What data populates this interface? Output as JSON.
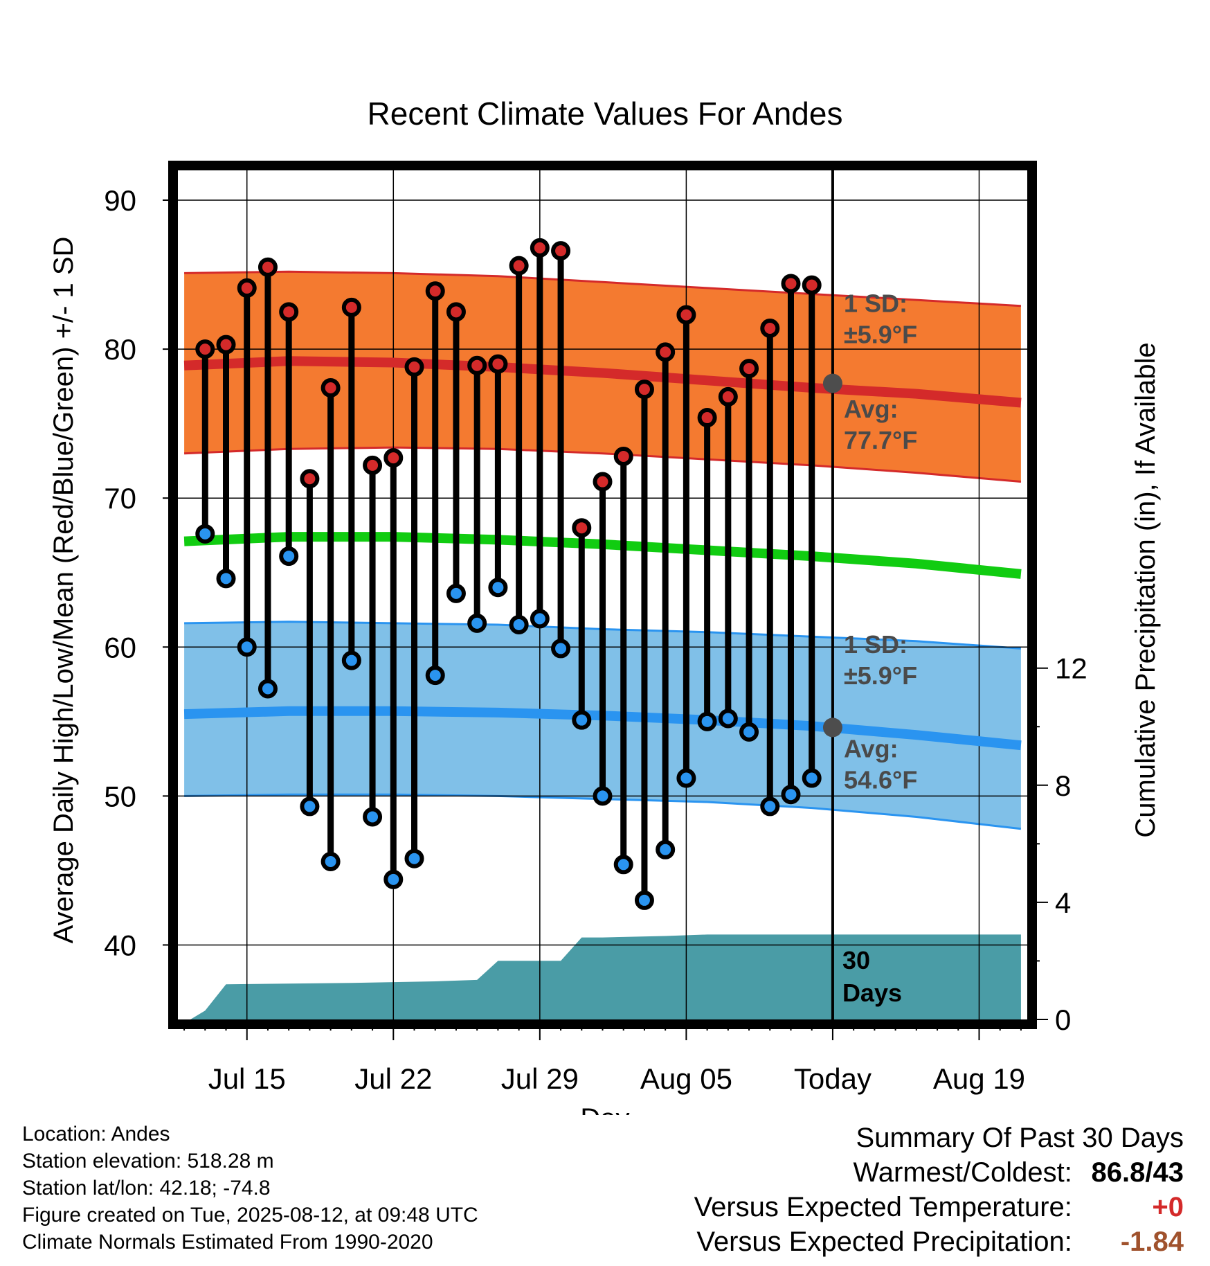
{
  "chart_data": {
    "type": "line",
    "title": "Recent Climate Values For Andes",
    "xlabel": "Day",
    "ylabel": "Average Daily High/Low/Mean (Red/Blue/Green) +/- 1 SD",
    "y2label": "Cumulative Precipitation (in), If Available",
    "ylim": [
      35,
      92
    ],
    "y2lim": [
      0,
      29
    ],
    "y_ticks": [
      40,
      50,
      60,
      70,
      80,
      90
    ],
    "y2_ticks": [
      0,
      4,
      8,
      12
    ],
    "x_ticks": [
      {
        "day": 15,
        "label": "Jul 15"
      },
      {
        "day": 22,
        "label": "Jul 22"
      },
      {
        "day": 29,
        "label": "Jul 29"
      },
      {
        "day": 36,
        "label": "Aug 05"
      },
      {
        "day": 43,
        "label": "Today"
      },
      {
        "day": 50,
        "label": "Aug 19"
      }
    ],
    "xlim": [
      11.7,
      52.3
    ],
    "grid": true,
    "today_day": 43,
    "days_label": "30 Days",
    "series": [
      {
        "name": "High",
        "color": "#d42a2a",
        "days": [
          13,
          14,
          15,
          16,
          17,
          18,
          19,
          20,
          21,
          22,
          23,
          24,
          25,
          26,
          27,
          28,
          29,
          30,
          31,
          32,
          33,
          34,
          35,
          36,
          37,
          38,
          39,
          40,
          41,
          42
        ],
        "values": [
          80,
          80.3,
          84.1,
          85.5,
          82.5,
          71.3,
          77.4,
          82.8,
          72.2,
          72.7,
          78.8,
          83.9,
          82.5,
          78.9,
          79,
          85.6,
          86.8,
          86.6,
          68,
          71.1,
          72.8,
          77.3,
          79.8,
          82.3,
          75.4,
          76.8,
          78.7,
          81.4,
          84.4,
          84.3
        ]
      },
      {
        "name": "Low",
        "color": "#2a94f0",
        "days": [
          13,
          14,
          15,
          16,
          17,
          18,
          19,
          20,
          21,
          22,
          23,
          24,
          25,
          26,
          27,
          28,
          29,
          30,
          31,
          32,
          33,
          34,
          35,
          36,
          37,
          38,
          39,
          40,
          41,
          42
        ],
        "values": [
          67.6,
          64.6,
          60,
          57.2,
          66.1,
          49.3,
          45.6,
          59.1,
          48.6,
          44.4,
          45.8,
          58.1,
          63.6,
          61.6,
          64,
          61.5,
          61.9,
          59.9,
          55.1,
          50,
          45.4,
          43,
          46.4,
          51.2,
          55,
          55.2,
          54.3,
          49.3,
          50.1,
          51.2
        ]
      }
    ],
    "normals": {
      "days": [
        12,
        17,
        22,
        27,
        32,
        37,
        42,
        47,
        52
      ],
      "high_mean": [
        78.9,
        79.2,
        79.1,
        78.8,
        78.4,
        77.9,
        77.4,
        77.0,
        76.4
      ],
      "high_upper": [
        85.1,
        85.2,
        85.1,
        84.9,
        84.5,
        84.1,
        83.7,
        83.3,
        82.9
      ],
      "high_lower": [
        73.0,
        73.3,
        73.4,
        73.3,
        73.0,
        72.6,
        72.2,
        71.7,
        71.1
      ],
      "mean": [
        67.1,
        67.4,
        67.4,
        67.2,
        66.9,
        66.5,
        66.1,
        65.6,
        64.9
      ],
      "low_mean": [
        55.5,
        55.7,
        55.7,
        55.6,
        55.4,
        55.1,
        54.7,
        54.1,
        53.4
      ],
      "low_upper": [
        61.6,
        61.7,
        61.6,
        61.5,
        61.2,
        61.0,
        60.7,
        60.4,
        59.9
      ],
      "low_lower": [
        50.0,
        50.1,
        50.1,
        50.0,
        49.8,
        49.6,
        49.2,
        48.6,
        47.8
      ]
    },
    "precip": {
      "days": [
        12,
        12.3,
        13,
        14,
        20,
        24,
        26,
        27,
        29,
        30,
        31,
        32,
        35,
        37,
        42,
        43,
        52
      ],
      "values": [
        0,
        0,
        0.3,
        1.2,
        1.25,
        1.3,
        1.35,
        2,
        2,
        2,
        2.8,
        2.8,
        2.85,
        2.9,
        2.9,
        2.9,
        2.9
      ],
      "color": "#4a9ca6"
    },
    "annotations": {
      "high_sd": "1 SD:",
      "high_sd_val": "±5.9°F",
      "high_avg": "Avg:",
      "high_avg_val": "77.7°F",
      "low_sd": "1 SD:",
      "low_sd_val": "±5.9°F",
      "low_avg": "Avg:",
      "low_avg_val": "54.6°F",
      "today_high_avg": 77.7,
      "today_low_avg": 54.6
    }
  },
  "meta": {
    "location": "Location: Andes",
    "elevation": "Station elevation: 518.28 m",
    "latlon": "Station lat/lon: 42.18; -74.8",
    "created": "Figure created on Tue, 2025-08-12, at 09:48 UTC",
    "normals": "Climate Normals Estimated From 1990-2020"
  },
  "summary": {
    "heading": "Summary Of Past 30 Days",
    "warm_label": "Warmest/Coldest:",
    "warm_value": "86.8/43",
    "temp_label": "Versus Expected Temperature:",
    "temp_value": "+0",
    "temp_color": "#d42a2a",
    "precip_label": "Versus Expected Precipitation:",
    "precip_value": "-1.84",
    "precip_color": "#a0522d"
  },
  "colors": {
    "high_band": "#f47a30",
    "high_line": "#d42a2a",
    "low_band": "#80c0e8",
    "low_line": "#2a94f0",
    "mean_line": "#11cc11",
    "marker_edge": "#000000",
    "today_dot": "#4d4d4d"
  }
}
